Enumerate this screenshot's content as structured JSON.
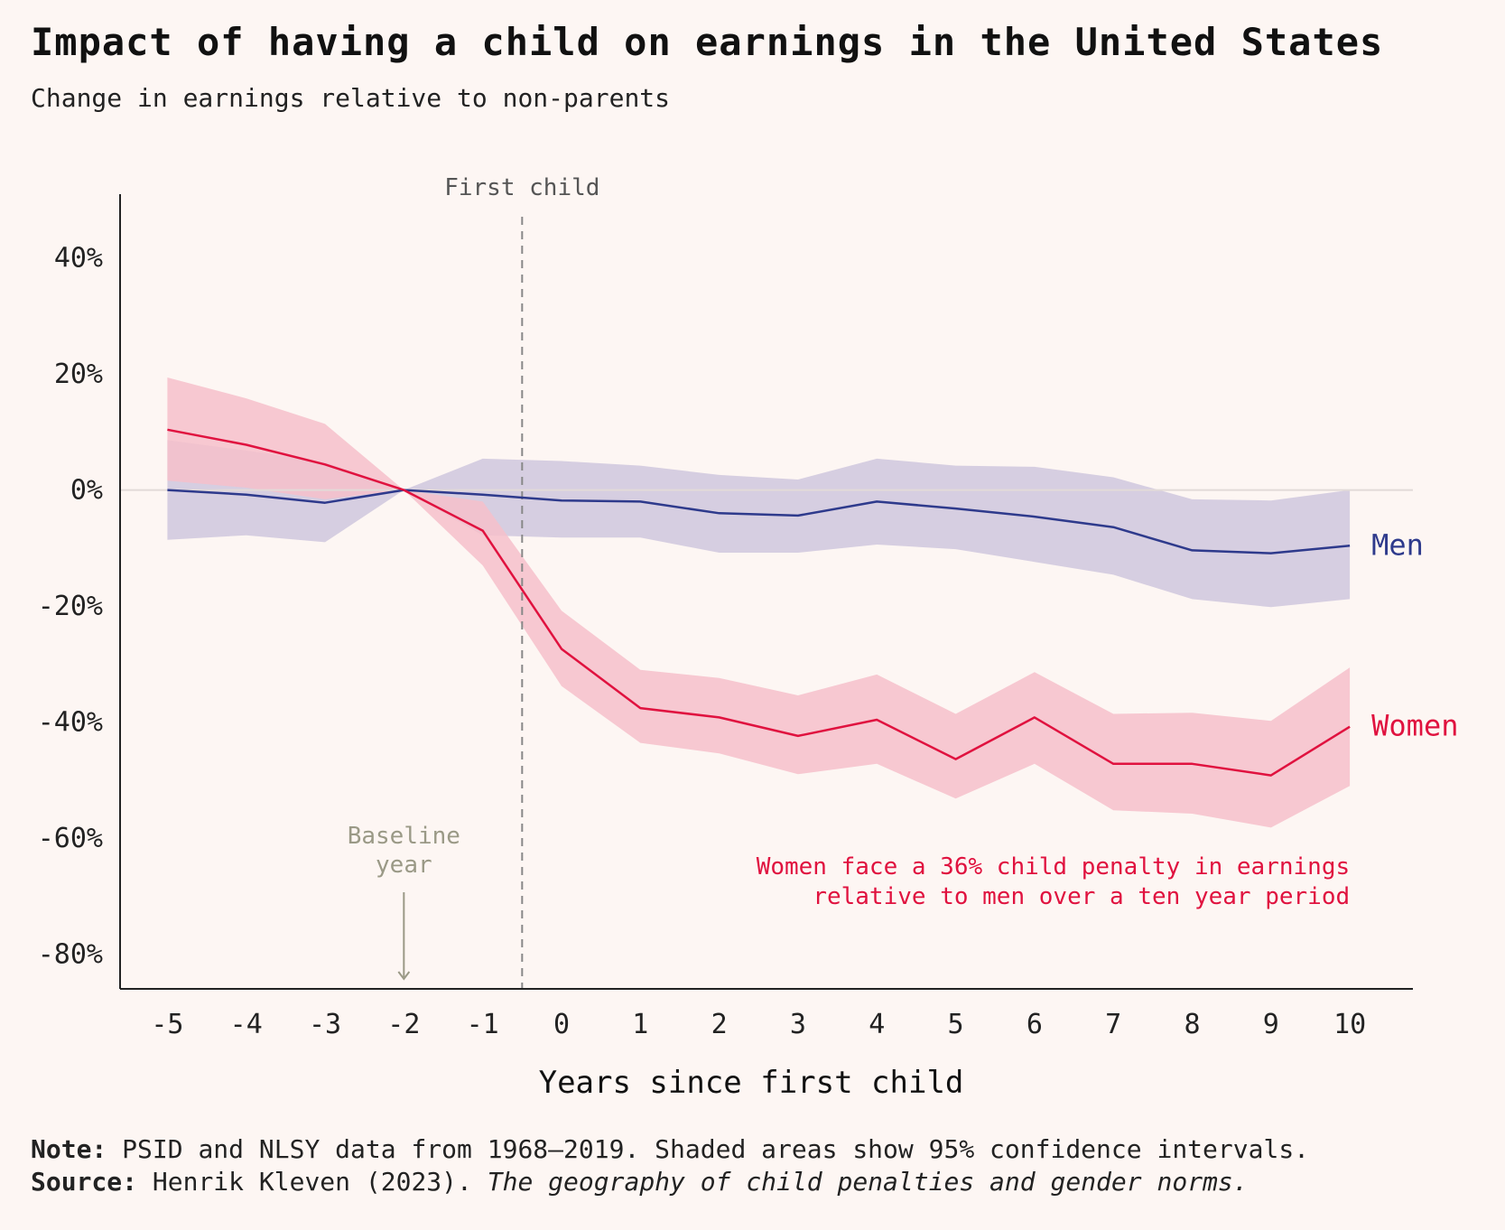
{
  "title": "Impact of having a child on earnings in the United States",
  "subtitle": "Change in earnings relative to non-parents",
  "footer": {
    "note_label": "Note:",
    "note_text": "PSID and NLSY data from 1968–2019. Shaded areas show 95% confidence intervals.",
    "source_label": "Source:",
    "source_text": "Henrik Kleven (2023).",
    "source_title": "The geography of child penalties and gender norms."
  },
  "chart_data": {
    "type": "line",
    "xlabel": "Years since first child",
    "ylabel": "",
    "x": [
      -5,
      -4,
      -3,
      -2,
      -1,
      0,
      1,
      2,
      3,
      4,
      5,
      6,
      7,
      8,
      9,
      10
    ],
    "xlim": [
      -5.6,
      10.8
    ],
    "ylim": [
      -86,
      51
    ],
    "yticks": [
      40,
      20,
      0,
      -20,
      -40,
      -60,
      -80
    ],
    "ytick_labels": [
      "40%",
      "20%",
      "0%",
      "-20%",
      "-40%",
      "-60%",
      "-80%"
    ],
    "grid": false,
    "series": [
      {
        "name": "Men",
        "color": "#2e3a8c",
        "band_color": "#cfc7dd",
        "values": [
          0,
          -0.8,
          -2.2,
          0,
          -0.8,
          -1.8,
          -2,
          -4,
          -4.4,
          -2,
          -3.2,
          -4.6,
          -6.4,
          -10.4,
          -10.9,
          -9.6
        ],
        "lower": [
          -8.6,
          -7.8,
          -9,
          0,
          -7.8,
          -8.2,
          -8.2,
          -10.8,
          -10.8,
          -9.4,
          -10.2,
          -12.4,
          -14.6,
          -18.8,
          -20.2,
          -18.8
        ],
        "upper": [
          8.6,
          6.8,
          4.8,
          0,
          5.4,
          5,
          4.2,
          2.6,
          1.8,
          5.4,
          4.2,
          4,
          2.2,
          -1.6,
          -1.8,
          0
        ]
      },
      {
        "name": "Women",
        "color": "#e0123f",
        "band_color": "#f6bfca",
        "values": [
          10.4,
          7.8,
          4.4,
          0,
          -7,
          -27.4,
          -37.6,
          -39.2,
          -42.4,
          -39.6,
          -46.4,
          -39.2,
          -47.2,
          -47.2,
          -49.2,
          -40.8
        ],
        "lower": [
          1.6,
          0.4,
          -1.6,
          0,
          -13,
          -33.8,
          -43.6,
          -45.4,
          -49,
          -47.2,
          -53.2,
          -47.2,
          -55.2,
          -55.8,
          -58.2,
          -51
        ],
        "upper": [
          19.4,
          15.8,
          11.4,
          0,
          -2,
          -20.8,
          -31,
          -32.4,
          -35.4,
          -31.8,
          -38.6,
          -31.4,
          -38.6,
          -38.4,
          -39.8,
          -30.6
        ]
      }
    ],
    "annotations": {
      "first_child_label": "First child",
      "first_child_x": -0.5,
      "baseline_label_line1": "Baseline",
      "baseline_label_line2": "year",
      "baseline_x": -2,
      "penalty_line1": "Women face a 36% child penalty in earnings",
      "penalty_line2": "relative to men over a ten year period"
    },
    "colors": {
      "background": "#fdf6f3",
      "axis": "#222222",
      "zero_line": "#e2dad8",
      "first_child_line": "#888888",
      "baseline_annotation": "#9a9986"
    }
  }
}
